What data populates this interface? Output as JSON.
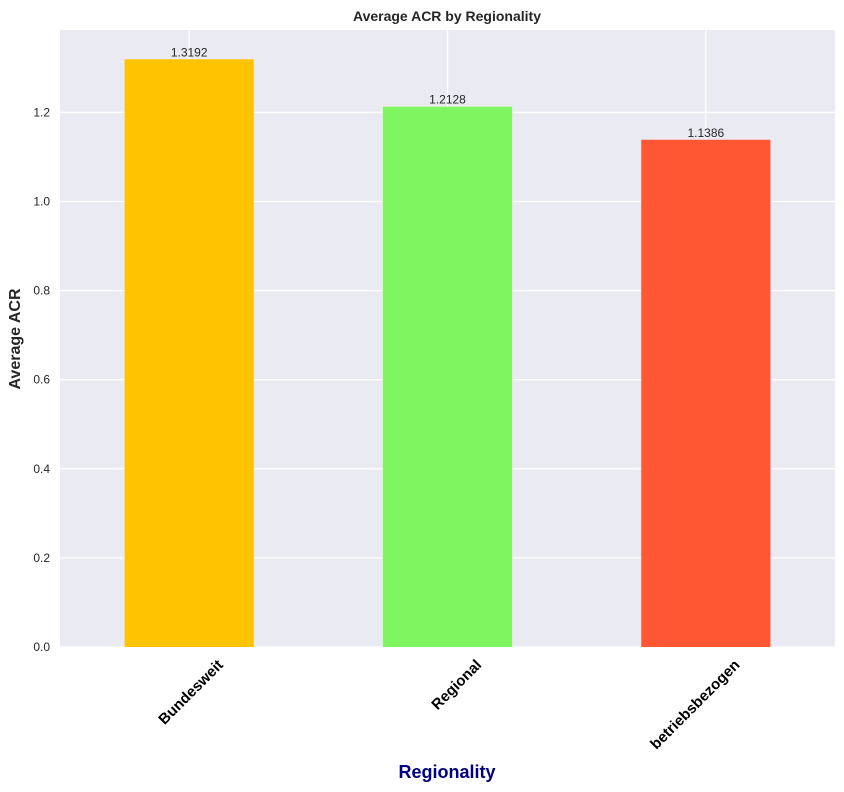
{
  "chart_data": {
    "type": "bar",
    "title": "Average ACR by Regionality",
    "xlabel": "Regionality",
    "ylabel": "Average ACR",
    "categories": [
      "Bundesweit",
      "Regional",
      "betriebsbezogen"
    ],
    "values": [
      1.3192,
      1.2128,
      1.1386
    ],
    "value_labels": [
      "1.3192",
      "1.2128",
      "1.1386"
    ],
    "colors": [
      "#FFC300",
      "#7FF55F",
      "#FF5733"
    ],
    "ylim": [
      0,
      1.385
    ],
    "yticks": [
      0.0,
      0.2,
      0.4,
      0.6,
      0.8,
      1.0,
      1.2
    ],
    "ytick_labels": [
      "0.0",
      "0.2",
      "0.4",
      "0.6",
      "0.8",
      "1.0",
      "1.2"
    ],
    "grid": true,
    "xlabel_color": "#000080",
    "plot_background": "#EAEAF2",
    "grid_color": "#FFFFFF"
  }
}
